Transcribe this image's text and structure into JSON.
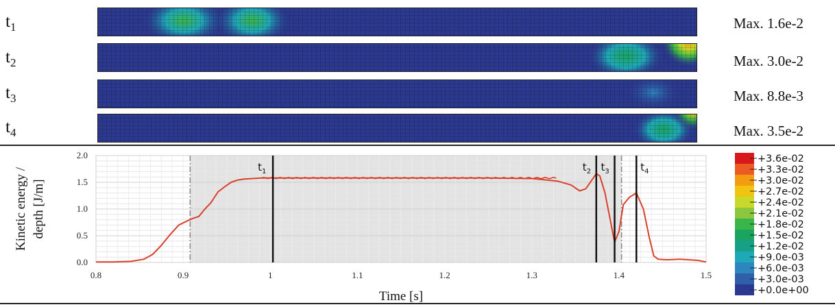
{
  "rows": [
    {
      "label": "t",
      "sub": "1",
      "max": "Max. 1.6e-2"
    },
    {
      "label": "t",
      "sub": "2",
      "max": "Max. 3.0e-2"
    },
    {
      "label": "t",
      "sub": "3",
      "max": "Max. 8.8e-3"
    },
    {
      "label": "t",
      "sub": "4",
      "max": "Max. 3.5e-2"
    }
  ],
  "legend": {
    "values": [
      "+3.6e-02",
      "+3.3e-02",
      "+3.0e-02",
      "+2.7e-02",
      "+2.4e-02",
      "+2.1e-02",
      "+1.8e-02",
      "+1.5e-02",
      "+1.2e-02",
      "+9.0e-03",
      "+6.0e-03",
      "+3.0e-03",
      "+0.0e+00"
    ],
    "colors": [
      "#d7191c",
      "#ee5a24",
      "#f39c12",
      "#f1c40f",
      "#c8d92b",
      "#8cc63f",
      "#39b54a",
      "#1aa361",
      "#16a085",
      "#1fa9b8",
      "#2e86c1",
      "#2e5fa8",
      "#2b3990"
    ]
  },
  "chart_data": {
    "type": "line",
    "xlabel": "Time [s]",
    "ylabel": "Kinetic energy /\ndepth [J/m]",
    "xlim": [
      0.8,
      1.5
    ],
    "ylim": [
      0.0,
      2.0
    ],
    "xticks": [
      "0.8",
      "0.9",
      "1",
      "1.1",
      "1.2",
      "1.3",
      "1.4",
      "1.5"
    ],
    "yticks": [
      "0.0",
      "0.5",
      "1.0",
      "1.5",
      "2.0"
    ],
    "grid": true,
    "line_color": "#d9402b",
    "shaded_region": [
      0.908,
      1.403
    ],
    "dashdot_lines": [
      0.908,
      1.403
    ],
    "markers": [
      {
        "label": "t",
        "sub": "1",
        "x": 1.003
      },
      {
        "label": "t",
        "sub": "2",
        "x": 1.374
      },
      {
        "label": "t",
        "sub": "3",
        "x": 1.395
      },
      {
        "label": "t",
        "sub": "4",
        "x": 1.42
      }
    ],
    "series": [
      {
        "x": [
          0.8,
          0.82,
          0.84,
          0.855,
          0.865,
          0.875,
          0.885,
          0.895,
          0.905,
          0.912,
          0.918,
          0.925,
          0.932,
          0.94,
          0.948,
          0.955,
          0.962,
          0.97,
          0.98,
          0.99,
          1.0,
          1.05,
          1.1,
          1.15,
          1.2,
          1.25,
          1.3,
          1.33,
          1.345,
          1.355,
          1.362,
          1.368,
          1.374,
          1.378,
          1.384,
          1.39,
          1.395,
          1.4,
          1.405,
          1.412,
          1.42,
          1.428,
          1.435,
          1.44,
          1.445,
          1.455,
          1.47,
          1.49,
          1.5
        ],
        "y": [
          0.01,
          0.01,
          0.02,
          0.06,
          0.15,
          0.32,
          0.52,
          0.7,
          0.78,
          0.83,
          0.86,
          1.0,
          1.12,
          1.32,
          1.42,
          1.5,
          1.54,
          1.56,
          1.57,
          1.58,
          1.58,
          1.58,
          1.58,
          1.58,
          1.58,
          1.58,
          1.57,
          1.52,
          1.45,
          1.34,
          1.38,
          1.52,
          1.66,
          1.62,
          1.3,
          0.8,
          0.38,
          0.58,
          1.08,
          1.22,
          1.3,
          1.0,
          0.45,
          0.12,
          0.06,
          0.05,
          0.06,
          0.04,
          0.01
        ]
      }
    ]
  }
}
